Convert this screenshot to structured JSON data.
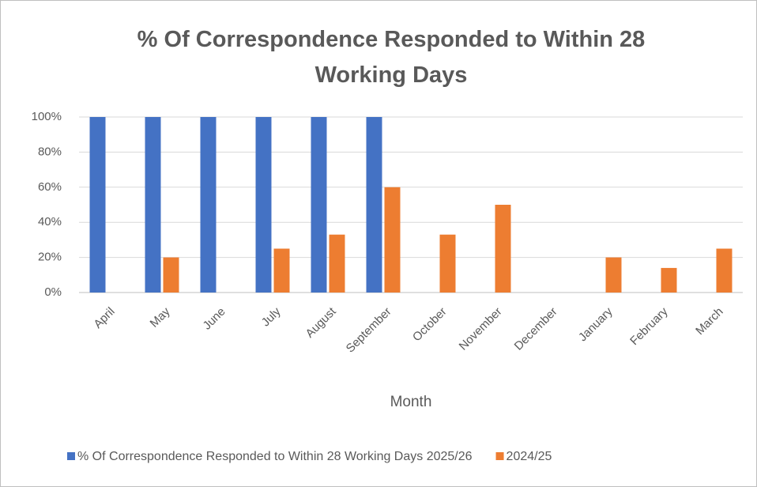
{
  "chart_data": {
    "type": "bar",
    "title": "% Of Correspondence Responded to Within 28 Working Days",
    "x_label": "Month",
    "categories": [
      "April",
      "May",
      "June",
      "July",
      "August",
      "September",
      "October",
      "November",
      "December",
      "January",
      "February",
      "March"
    ],
    "series": [
      {
        "name": "% Of Correspondence Responded to Within 28 Working Days 2025/26",
        "color": "#4472c4",
        "values": [
          100,
          100,
          100,
          100,
          100,
          100,
          null,
          null,
          null,
          null,
          null,
          null
        ]
      },
      {
        "name": "2024/25",
        "color": "#ed7d31",
        "values": [
          null,
          20,
          null,
          25,
          33,
          60,
          33,
          50,
          null,
          20,
          14,
          25
        ]
      }
    ],
    "ylim": [
      0,
      100
    ],
    "yticks": [
      {
        "value": 0,
        "label": "0%"
      },
      {
        "value": 20,
        "label": "20%"
      },
      {
        "value": 40,
        "label": "40%"
      },
      {
        "value": 60,
        "label": "60%"
      },
      {
        "value": 80,
        "label": "80%"
      },
      {
        "value": 100,
        "label": "100%"
      }
    ],
    "grid": true,
    "legend": "bottom"
  }
}
